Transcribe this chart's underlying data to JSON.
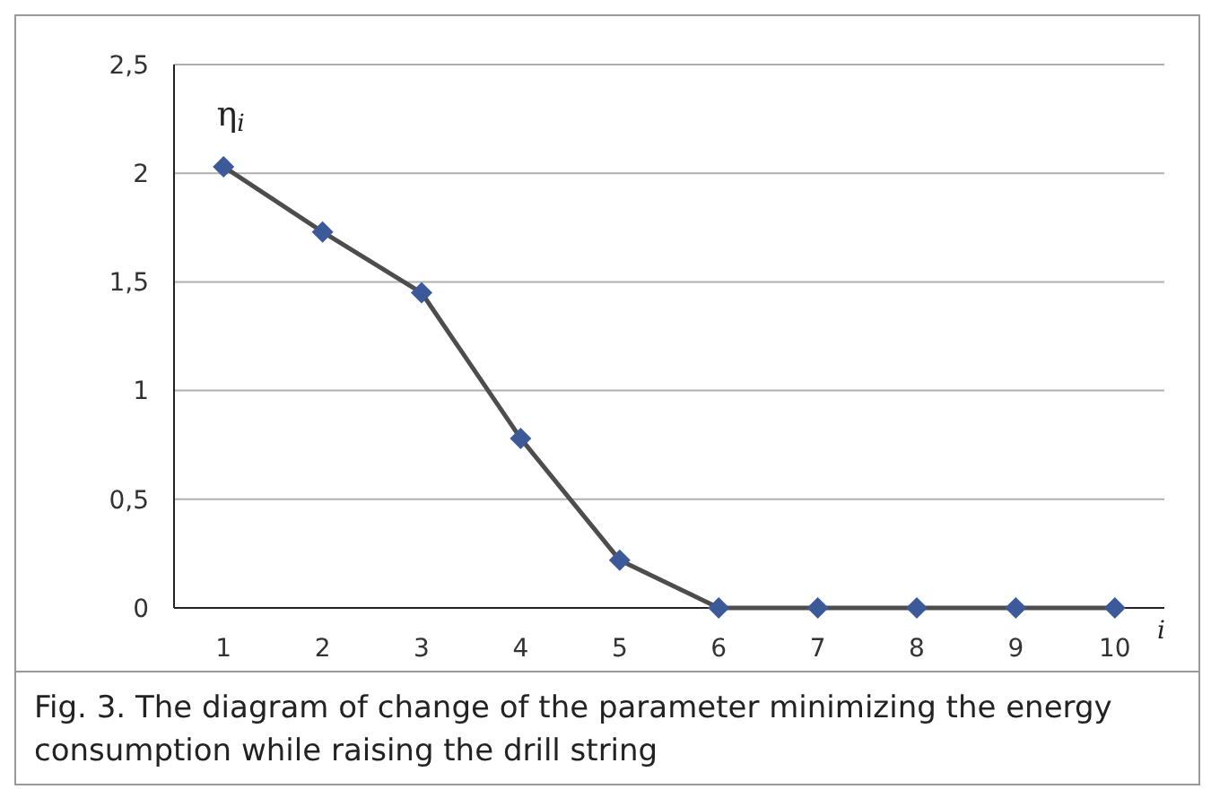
{
  "chart_data": {
    "type": "line",
    "categories": [
      "1",
      "2",
      "3",
      "4",
      "5",
      "6",
      "7",
      "8",
      "9",
      "10"
    ],
    "series": [
      {
        "color": "#3c5a9a",
        "values": [
          2.03,
          1.73,
          1.45,
          0.78,
          0.22,
          0,
          0,
          0,
          0,
          0
        ]
      }
    ],
    "ylim": [
      0,
      2.5
    ],
    "yticks": [
      {
        "value": 0,
        "label": "0"
      },
      {
        "value": 0.5,
        "label": "0,5"
      },
      {
        "value": 1,
        "label": "1"
      },
      {
        "value": 1.5,
        "label": "1,5"
      },
      {
        "value": 2,
        "label": "2"
      },
      {
        "value": 2.5,
        "label": "2,5"
      }
    ],
    "ylabel": "η$_{i}$",
    "xlabel": "i",
    "grid": "y",
    "marker": "diamond",
    "line_style": "solid",
    "annotations": [
      "Fig. 3. The diagram of change of the parameter minimizing the energy consumption while raising the drill string"
    ]
  }
}
